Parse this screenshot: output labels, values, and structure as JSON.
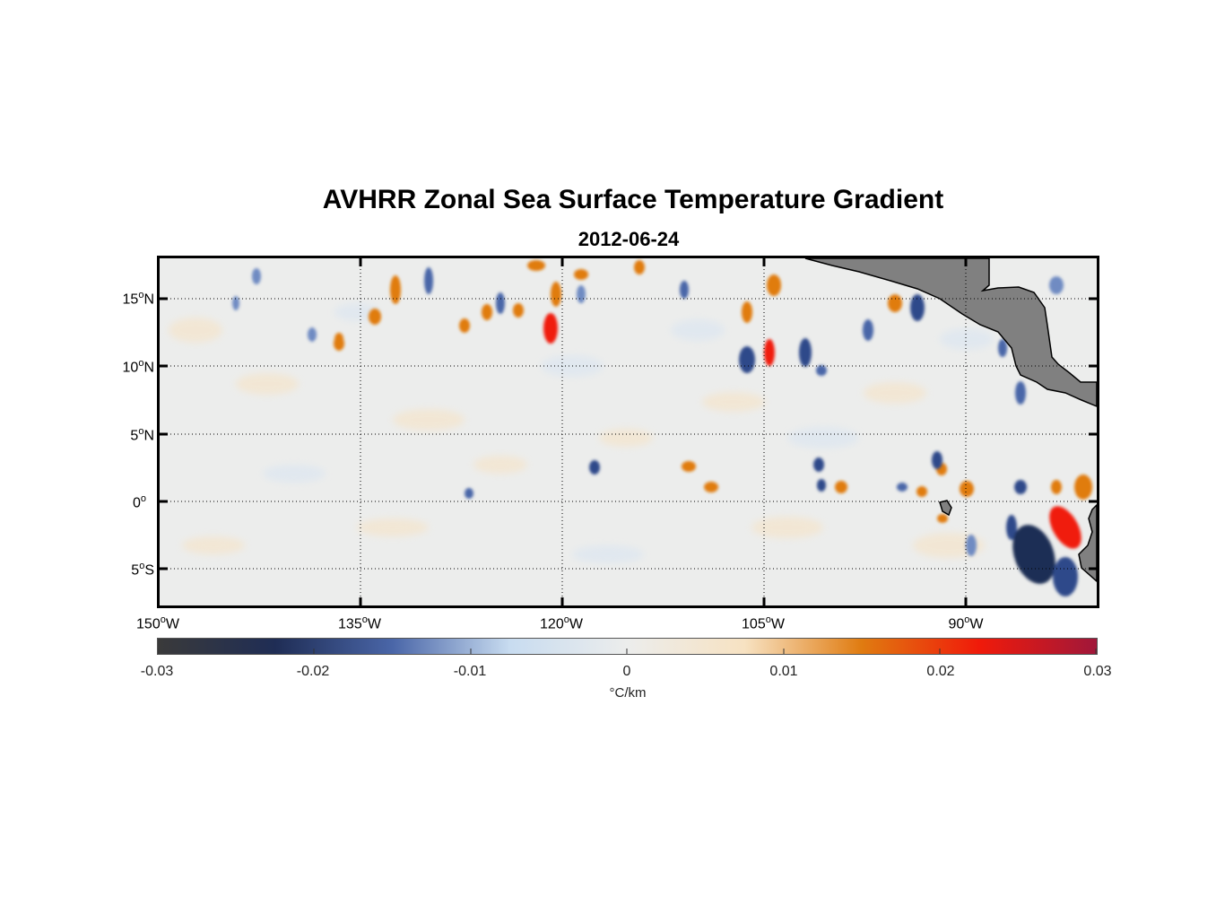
{
  "title": "AVHRR Zonal Sea Surface Temperature Gradient",
  "subtitle": "2012-06-24",
  "lat_labels": [
    {
      "deg": "15",
      "hemi": "N"
    },
    {
      "deg": "10",
      "hemi": "N"
    },
    {
      "deg": "5",
      "hemi": "N"
    },
    {
      "deg": "0",
      "hemi": ""
    },
    {
      "deg": "5",
      "hemi": "S"
    }
  ],
  "lon_labels": [
    {
      "deg": "150",
      "hemi": "W"
    },
    {
      "deg": "135",
      "hemi": "W"
    },
    {
      "deg": "120",
      "hemi": "W"
    },
    {
      "deg": "105",
      "hemi": "W"
    },
    {
      "deg": "90",
      "hemi": "W"
    }
  ],
  "colorbar": {
    "ticks": [
      "-0.03",
      "-0.02",
      "-0.01",
      "0",
      "0.01",
      "0.02",
      "0.03"
    ],
    "unit": "°C/km",
    "colors": [
      "#3a3a3a",
      "#1f2d55",
      "#4a66a8",
      "#c8dcf0",
      "#ecedec",
      "#f7e2c2",
      "#e07b10",
      "#f01a0a",
      "#a0173a"
    ]
  },
  "land_color": "#808080"
}
